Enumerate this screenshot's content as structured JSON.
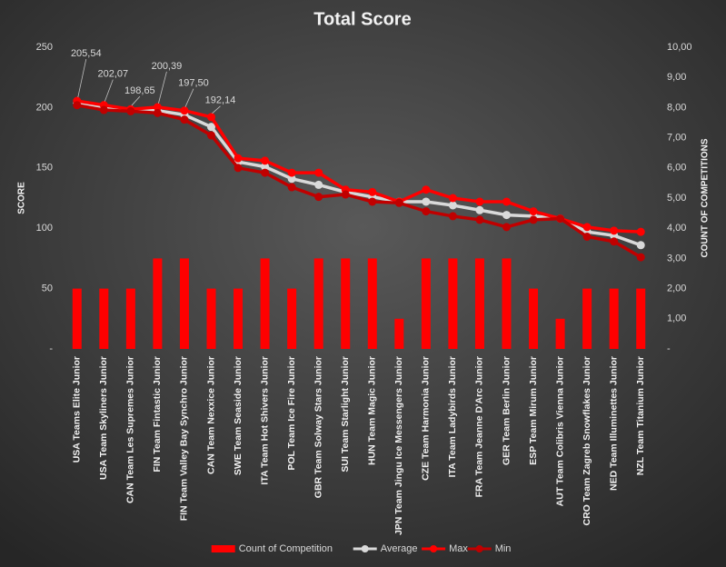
{
  "chart_data": {
    "type": "combo",
    "title": "Total Score",
    "y_label": "SCORE",
    "y2_label": "COUNT OF COMPETITIONS",
    "categories": [
      "USA Teams Elite Junior",
      "USA Team Skyliners Junior",
      "CAN Team Les Supremes Junior",
      "FIN Team Fintastic Junior",
      "FIN Team Valley Bay Synchro Junior",
      "CAN Team Nexxice Junior",
      "SWE Team Seaside Junior",
      "ITA Team Hot Shivers Junior",
      "POL Team Ice Fire Junior",
      "GBR Team Solway Stars Junior",
      "SUI Team Starlight Junior",
      "HUN Team Magic Junior",
      "JPN Team Jingu Ice Messengers Junior",
      "CZE Team Harmonia Junior",
      "ITA Team Ladybirds Junior",
      "FRA Team Jeanne D'Arc Junior",
      "GER Team Berlin Junior",
      "ESP Team Mirum Junior",
      "AUT Team Colibris Vienna Junior",
      "CRO Team Zagreb Snowflakes Junior",
      "NED Team Illuminettes Junior",
      "NZL Team Titanium Junior"
    ],
    "series": [
      {
        "name": "Count of Competition",
        "type": "bar",
        "axis": "y2",
        "color": "#ff0000",
        "values": [
          2,
          2,
          2,
          3,
          3,
          2,
          2,
          3,
          2,
          3,
          3,
          3,
          1,
          3,
          3,
          3,
          3,
          2,
          1,
          2,
          2,
          2
        ]
      },
      {
        "name": "Average",
        "type": "line",
        "color": "#d9d9d9",
        "values": [
          203.5,
          200,
          198,
          197.5,
          194,
          184,
          155,
          151,
          141,
          136,
          130,
          126,
          122,
          122,
          119,
          115,
          111,
          110,
          108,
          97,
          94,
          86
        ]
      },
      {
        "name": "Max",
        "type": "line",
        "color": "#ff0000",
        "values": [
          205.54,
          202.07,
          198.65,
          200.39,
          197.5,
          192.14,
          158,
          156,
          146,
          146,
          132,
          130,
          122,
          132,
          125,
          122,
          122,
          114,
          108,
          101,
          98,
          97
        ],
        "value_labels": [
          "205,54",
          "202,07",
          "198,65",
          "200,39",
          "197,50",
          "192,14",
          null,
          null,
          null,
          null,
          null,
          null,
          null,
          null,
          null,
          null,
          null,
          null,
          null,
          null,
          null,
          null
        ]
      },
      {
        "name": "Min",
        "type": "line",
        "color": "#c00000",
        "values": [
          202,
          198,
          197,
          195.5,
          190,
          177,
          150,
          146,
          134,
          126,
          128,
          122,
          121,
          114,
          110,
          107,
          101,
          107,
          108,
          93,
          89,
          76
        ]
      }
    ],
    "ylim": [
      0,
      250
    ],
    "yticks": [
      {
        "value": 0,
        "label": "-"
      },
      50,
      100,
      150,
      200,
      250
    ],
    "y2lim": [
      0,
      10
    ],
    "y2ticks": [
      {
        "value": 0,
        "label": "-"
      },
      {
        "value": 1,
        "label": "1,00"
      },
      {
        "value": 2,
        "label": "2,00"
      },
      {
        "value": 3,
        "label": "3,00"
      },
      {
        "value": 4,
        "label": "4,00"
      },
      {
        "value": 5,
        "label": "5,00"
      },
      {
        "value": 6,
        "label": "6,00"
      },
      {
        "value": 7,
        "label": "7,00"
      },
      {
        "value": 8,
        "label": "8,00"
      },
      {
        "value": 9,
        "label": "9,00"
      },
      {
        "value": 10,
        "label": "10,00"
      }
    ],
    "legend": "bottom"
  }
}
